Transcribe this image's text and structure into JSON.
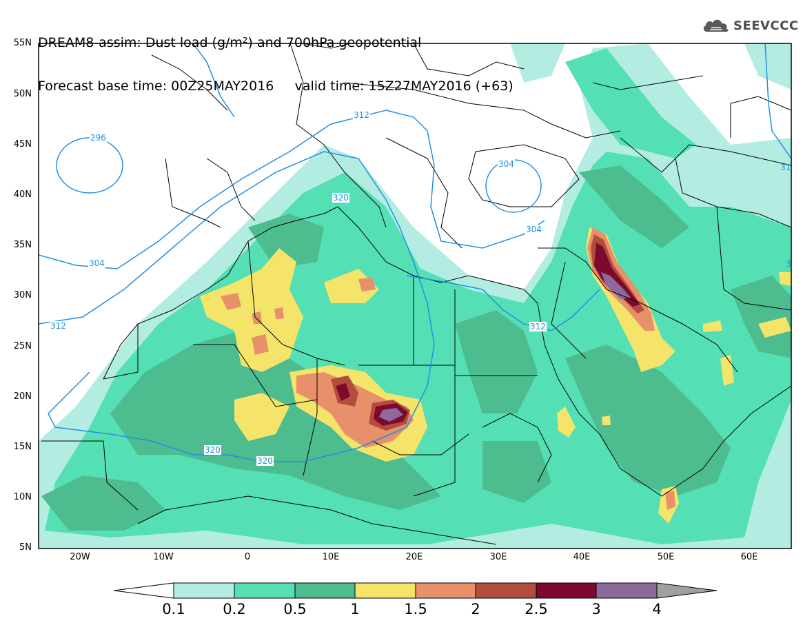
{
  "header": {
    "title_line1": "DREAM8-assim: Dust load (g/m²) and 700hPa geopotential",
    "title_line2": "Forecast base time: 00Z25MAY2016     valid time: 15Z27MAY2016 (+63)"
  },
  "logo": {
    "text": "SEEVCCC",
    "icon": "cloud-icon"
  },
  "axes": {
    "lat_labels": [
      "55N",
      "50N",
      "45N",
      "40N",
      "35N",
      "30N",
      "25N",
      "20N",
      "15N",
      "10N",
      "5N"
    ],
    "lon_labels": [
      "20W",
      "10W",
      "0",
      "10E",
      "20E",
      "30E",
      "40E",
      "50E",
      "60E"
    ]
  },
  "contours": {
    "labels": [
      "296",
      "312",
      "320",
      "304",
      "304",
      "304",
      "312",
      "320",
      "320",
      "312",
      "31",
      "3"
    ],
    "color": "#1e90e6"
  },
  "colorbar": {
    "labels": [
      "0.1",
      "0.2",
      "0.5",
      "1",
      "1.5",
      "2",
      "2.5",
      "3",
      "4"
    ],
    "colors": [
      "#ffffff",
      "#b3ede2",
      "#55dfb4",
      "#4dbc8e",
      "#f4e46a",
      "#e8906a",
      "#b24d3e",
      "#7d0a2c",
      "#8c6a9c",
      "#a0a0a0"
    ]
  },
  "legend_colors": {
    "land_border": "#000000",
    "contour_line": "#1e90e6"
  }
}
